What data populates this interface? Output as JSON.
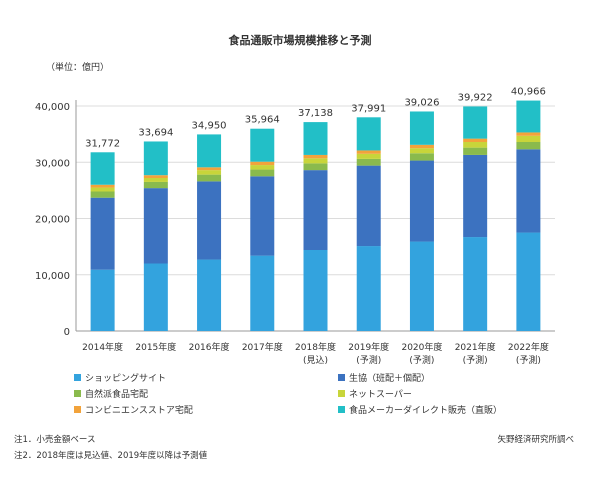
{
  "chart_data": {
    "type": "bar",
    "stacked": true,
    "title": "食品通販市場規模推移と予測",
    "unit_label": "（単位：億円）",
    "ylim": [
      0,
      40000
    ],
    "yticks": [
      "0",
      "10,000",
      "20,000",
      "30,000",
      "40,000"
    ],
    "ytick_values": [
      0,
      10000,
      20000,
      30000,
      40000
    ],
    "categories": [
      [
        "2014年度"
      ],
      [
        "2015年度"
      ],
      [
        "2016年度"
      ],
      [
        "2017年度"
      ],
      [
        "2018年度",
        "(見込)"
      ],
      [
        "2019年度",
        "(予測)"
      ],
      [
        "2020年度",
        "(予測)"
      ],
      [
        "2021年度",
        "(予測)"
      ],
      [
        "2022年度",
        "(予測)"
      ]
    ],
    "totals": [
      31772,
      33694,
      34950,
      35964,
      37138,
      37991,
      39026,
      39922,
      40966
    ],
    "total_labels": [
      "31,772",
      "33,694",
      "34,950",
      "35,964",
      "37,138",
      "37,991",
      "39,026",
      "39,922",
      "40,966"
    ],
    "series": [
      {
        "name": "ショッピングサイト",
        "color": "#33a3de",
        "values": [
          10900,
          12000,
          12700,
          13400,
          14400,
          15100,
          15900,
          16700,
          17500
        ]
      },
      {
        "name": "生協（班配＋個配）",
        "color": "#3c72c0",
        "values": [
          12800,
          13400,
          13900,
          14100,
          14200,
          14300,
          14400,
          14600,
          14800
        ]
      },
      {
        "name": "自然派食品宅配",
        "color": "#8aba4d",
        "values": [
          1100,
          1100,
          1200,
          1200,
          1200,
          1200,
          1300,
          1300,
          1300
        ]
      },
      {
        "name": "ネットスーパー",
        "color": "#c8d53a",
        "values": [
          700,
          700,
          800,
          800,
          900,
          900,
          900,
          1000,
          1100
        ]
      },
      {
        "name": "コンビニエンスストア宅配",
        "color": "#f2a33b",
        "values": [
          500,
          500,
          500,
          600,
          600,
          600,
          600,
          600,
          600
        ]
      },
      {
        "name": "食品メーカーダイレクト販売（直販）",
        "color": "#22bfc7",
        "values": [
          5772,
          5994,
          5850,
          5864,
          5838,
          5891,
          5926,
          5722,
          5666
        ]
      }
    ],
    "legend_position": "bottom",
    "grid": true
  },
  "notes": [
    "注1．小売金額ベース",
    "注2．2018年度は見込値、2019年度以降は予測値"
  ],
  "source": "矢野経済研究所調べ"
}
